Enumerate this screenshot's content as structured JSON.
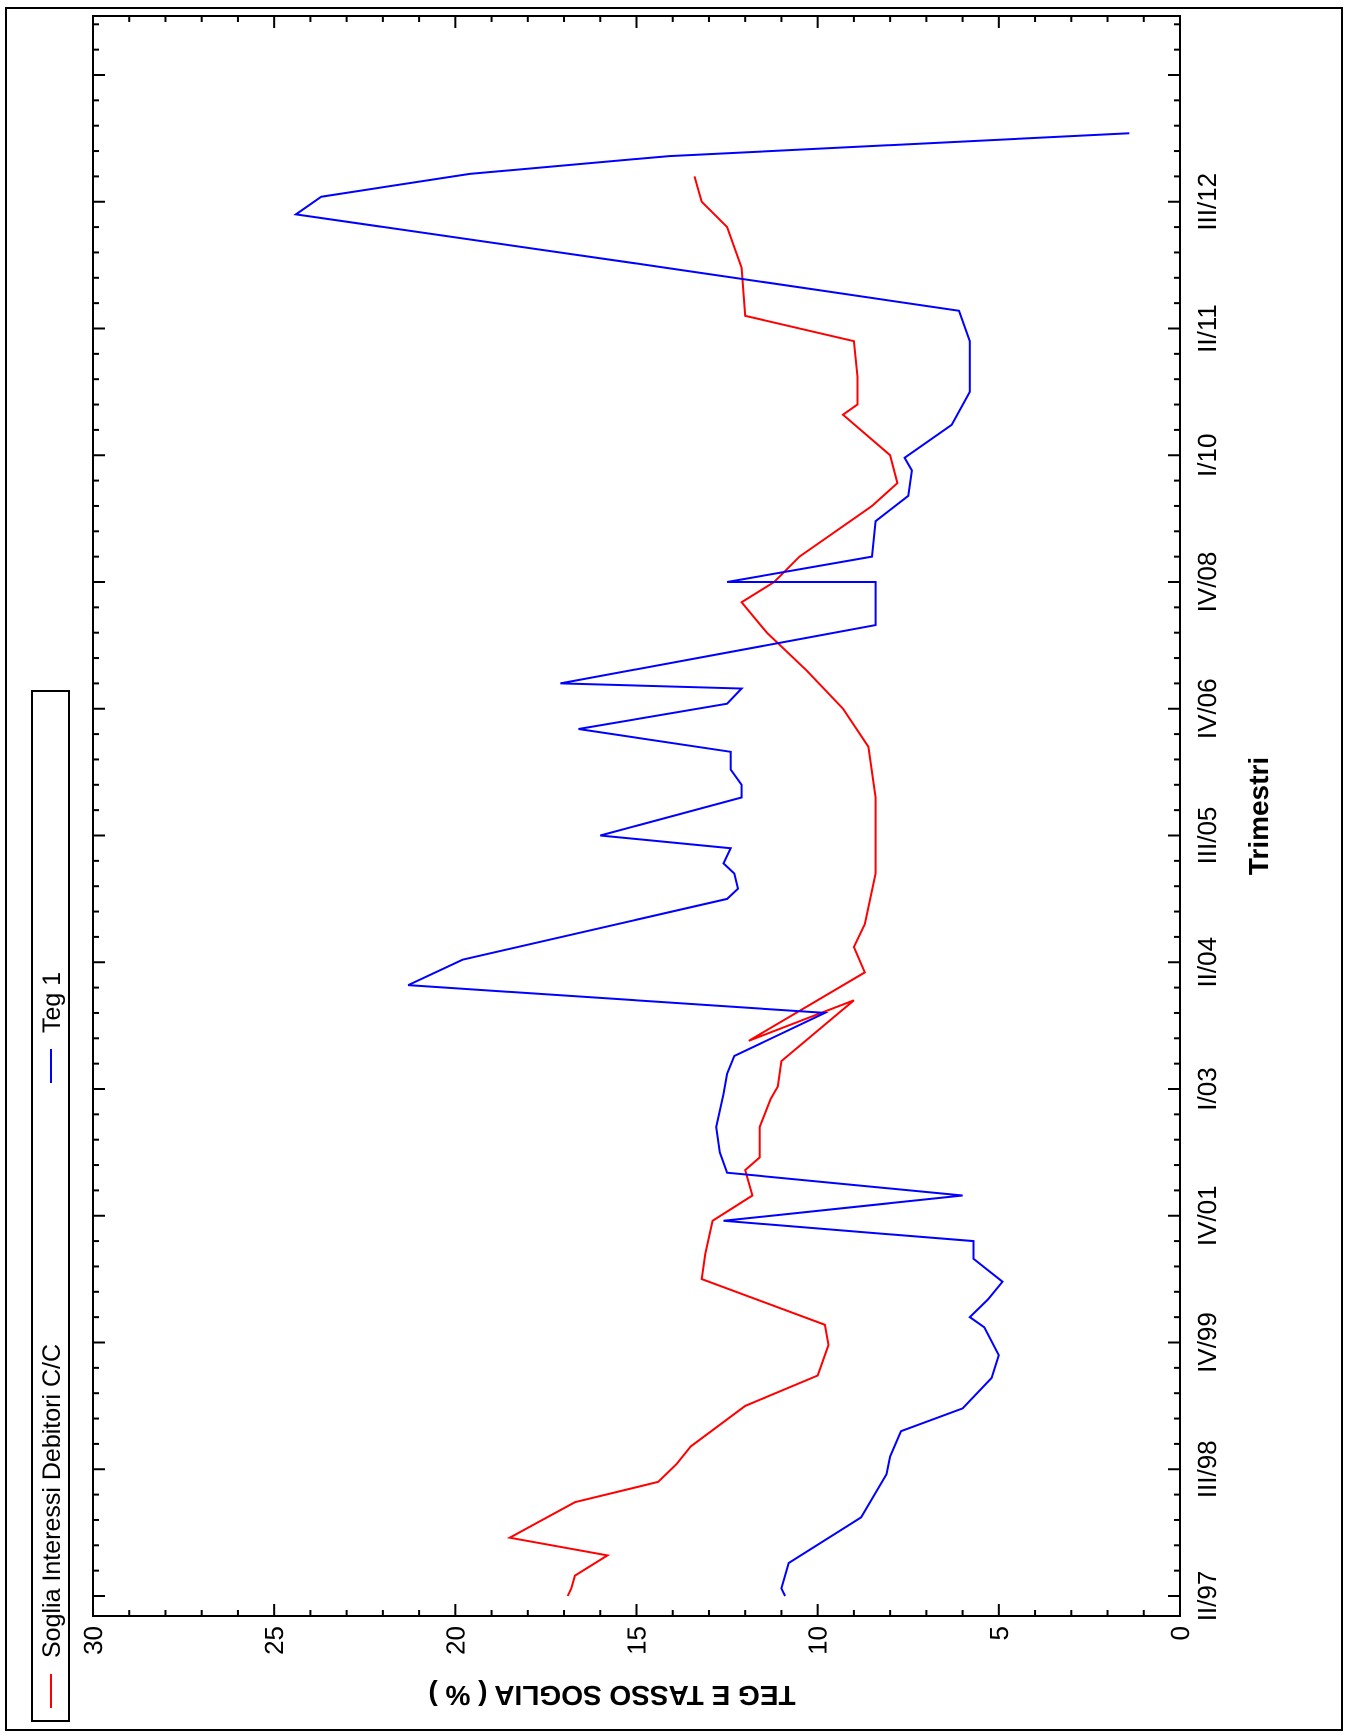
{
  "chart_data": {
    "type": "line",
    "title": "",
    "xlabel": "Trimestri",
    "ylabel": "TEG E TASSO SOGLIA ( % )",
    "ylim": [
      0,
      30
    ],
    "yticks": [
      0,
      5,
      10,
      15,
      20,
      25,
      30
    ],
    "xlim": [
      0,
      62.5
    ],
    "xtick_labels": [
      "II/97",
      "III/98",
      "IV/99",
      "IV/01",
      "I/03",
      "II/04",
      "III/05",
      "IV/06",
      "IV/08",
      "I/10",
      "II/11",
      "III/12"
    ],
    "xtick_positions": [
      0,
      5,
      10,
      15,
      20,
      25,
      30,
      35,
      40,
      45,
      50,
      55
    ],
    "grid": false,
    "legend_position": "top",
    "colors": {
      "Soglia Interessi Debitori C/C": "#ff0000",
      "Teg 1": "#0000ff"
    },
    "series": [
      {
        "name": "Soglia Interessi Debitori C/C",
        "color": "#ff0000",
        "points": [
          [
            0,
            16.9
          ],
          [
            0.3,
            16.8
          ],
          [
            0.8,
            16.7
          ],
          [
            1.6,
            15.8
          ],
          [
            2.3,
            18.5
          ],
          [
            3.7,
            16.7
          ],
          [
            4.5,
            14.4
          ],
          [
            5.2,
            13.9
          ],
          [
            5.9,
            13.5
          ],
          [
            7.5,
            12.0
          ],
          [
            8.7,
            10.0
          ],
          [
            9.9,
            9.7
          ],
          [
            10.7,
            9.8
          ],
          [
            12.5,
            13.2
          ],
          [
            13.5,
            13.1
          ],
          [
            14.8,
            12.9
          ],
          [
            15.8,
            11.8
          ],
          [
            16.8,
            12.0
          ],
          [
            17.3,
            11.6
          ],
          [
            18.5,
            11.6
          ],
          [
            19.6,
            11.3
          ],
          [
            20.1,
            11.1
          ],
          [
            21.1,
            11.0
          ],
          [
            23.5,
            9.0
          ],
          [
            21.9,
            11.9
          ],
          [
            24.6,
            8.7
          ],
          [
            25.6,
            9.0
          ],
          [
            26.5,
            8.7
          ],
          [
            28.5,
            8.4
          ],
          [
            31.5,
            8.4
          ],
          [
            33.5,
            8.6
          ],
          [
            35.0,
            9.3
          ],
          [
            36.5,
            10.3
          ],
          [
            38.0,
            11.4
          ],
          [
            39.2,
            12.1
          ],
          [
            40.0,
            11.2
          ],
          [
            41.0,
            10.5
          ],
          [
            43.0,
            8.5
          ],
          [
            43.9,
            7.8
          ],
          [
            45.0,
            8.0
          ],
          [
            46.6,
            9.3
          ],
          [
            47.0,
            8.9
          ],
          [
            48.1,
            8.9
          ],
          [
            49.5,
            9.0
          ],
          [
            50.5,
            12.0
          ],
          [
            52.4,
            12.1
          ],
          [
            54.0,
            12.5
          ],
          [
            55.0,
            13.2
          ],
          [
            55.5,
            13.3
          ],
          [
            56.0,
            13.4
          ]
        ]
      },
      {
        "name": "Teg 1",
        "color": "#0000ff",
        "points": [
          [
            0,
            10.9
          ],
          [
            0.3,
            11.0
          ],
          [
            1.3,
            10.8
          ],
          [
            3.1,
            8.8
          ],
          [
            4.8,
            8.1
          ],
          [
            5.5,
            8.0
          ],
          [
            6.5,
            7.7
          ],
          [
            7.4,
            6.0
          ],
          [
            8.6,
            5.2
          ],
          [
            9.5,
            5.0
          ],
          [
            10.6,
            5.4
          ],
          [
            11.0,
            5.8
          ],
          [
            11.7,
            5.3
          ],
          [
            12.4,
            4.9
          ],
          [
            13.3,
            5.7
          ],
          [
            14.0,
            5.7
          ],
          [
            14.8,
            12.6
          ],
          [
            15.8,
            6.0
          ],
          [
            16.7,
            12.5
          ],
          [
            17.5,
            12.7
          ],
          [
            18.5,
            12.8
          ],
          [
            19.8,
            12.6
          ],
          [
            20.6,
            12.5
          ],
          [
            21.3,
            12.3
          ],
          [
            23.0,
            9.8
          ],
          [
            24.1,
            21.3
          ],
          [
            25.1,
            19.8
          ],
          [
            27.5,
            12.5
          ],
          [
            27.9,
            12.2
          ],
          [
            28.5,
            12.3
          ],
          [
            28.9,
            12.6
          ],
          [
            29.5,
            12.4
          ],
          [
            30.0,
            16.0
          ],
          [
            31.5,
            12.1
          ],
          [
            32.0,
            12.1
          ],
          [
            32.6,
            12.4
          ],
          [
            33.3,
            12.4
          ],
          [
            34.2,
            16.6
          ],
          [
            35.2,
            12.5
          ],
          [
            35.8,
            12.1
          ],
          [
            36.0,
            17.1
          ],
          [
            38.3,
            8.4
          ],
          [
            39.0,
            8.4
          ],
          [
            40.0,
            8.4
          ],
          [
            40.0,
            12.5
          ],
          [
            41.0,
            8.5
          ],
          [
            42.4,
            8.4
          ],
          [
            43.4,
            7.5
          ],
          [
            44.4,
            7.4
          ],
          [
            44.9,
            7.6
          ],
          [
            46.2,
            6.3
          ],
          [
            47.5,
            5.8
          ],
          [
            49.5,
            5.8
          ],
          [
            50.7,
            6.1
          ],
          [
            51.5,
            9.9
          ],
          [
            52.4,
            14.2
          ],
          [
            54.5,
            24.4
          ],
          [
            55.2,
            23.7
          ],
          [
            56.1,
            19.6
          ],
          [
            56.8,
            14.1
          ],
          [
            57.7,
            1.4
          ]
        ]
      }
    ]
  }
}
